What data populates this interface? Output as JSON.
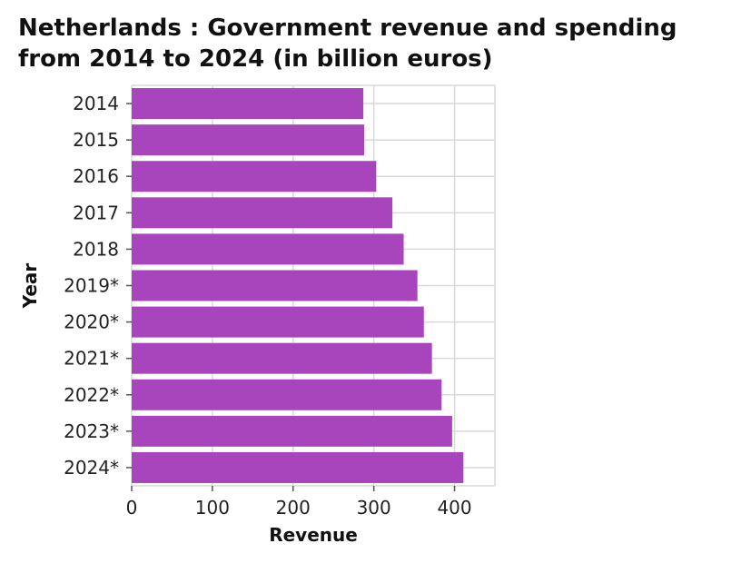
{
  "chart_data": {
    "type": "bar",
    "orientation": "horizontal",
    "title": "Netherlands : Government revenue and spending from 2014 to 2024 (in billion euros)",
    "xlabel": "Revenue",
    "ylabel": "Year",
    "categories": [
      "2014",
      "2015",
      "2016",
      "2017",
      "2018",
      "2019*",
      "2020*",
      "2021*",
      "2022*",
      "2023*",
      "2024*"
    ],
    "values": [
      287,
      288,
      303,
      323,
      337,
      354,
      362,
      372,
      384,
      397,
      411
    ],
    "xlim": [
      0,
      450
    ],
    "xticks": [
      0,
      100,
      200,
      300,
      400
    ],
    "grid": true,
    "bar_color": "#a845bd"
  }
}
